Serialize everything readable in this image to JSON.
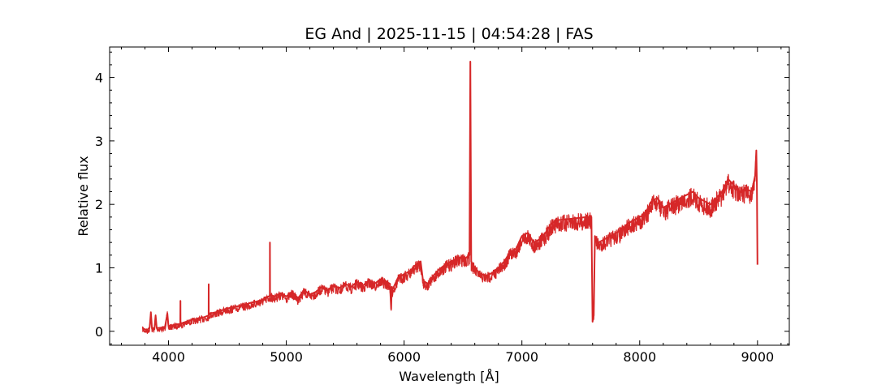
{
  "chart_data": {
    "type": "line",
    "title": "EG And | 2025-11-15 | 04:54:28 | FAS",
    "xlabel": "Wavelength [Å]",
    "ylabel": "Relative flux",
    "xlim": [
      3500,
      9270
    ],
    "ylim": [
      -0.22,
      4.48
    ],
    "x_ticks": [
      4000,
      5000,
      6000,
      7000,
      8000,
      9000
    ],
    "y_ticks": [
      0,
      1,
      2,
      3,
      4
    ],
    "grid": false,
    "line_color": "#d62728",
    "series": [
      {
        "x": [
          3780,
          3800,
          3820,
          3840,
          3850,
          3860,
          3870,
          3880,
          3890,
          3900,
          3950,
          3970,
          3990,
          4000,
          4050,
          4100,
          4101,
          4102,
          4150,
          4200,
          4250,
          4300,
          4340,
          4341,
          4342,
          4350,
          4400,
          4450,
          4500,
          4550,
          4600,
          4650,
          4700,
          4750,
          4800,
          4850,
          4860,
          4861,
          4862,
          4870,
          4900,
          4950,
          5000,
          5050,
          5100,
          5150,
          5200,
          5250,
          5300,
          5350,
          5400,
          5450,
          5500,
          5550,
          5600,
          5650,
          5700,
          5750,
          5800,
          5850,
          5880,
          5890,
          5895,
          5900,
          5950,
          6000,
          6050,
          6100,
          6140,
          6160,
          6200,
          6250,
          6300,
          6350,
          6400,
          6450,
          6500,
          6520,
          6555,
          6562,
          6570,
          6600,
          6650,
          6700,
          6750,
          6800,
          6850,
          6900,
          6950,
          7000,
          7050,
          7100,
          7150,
          7200,
          7250,
          7300,
          7350,
          7400,
          7450,
          7500,
          7550,
          7590,
          7600,
          7610,
          7620,
          7650,
          7700,
          7750,
          7800,
          7850,
          7900,
          7950,
          8000,
          8050,
          8100,
          8150,
          8200,
          8250,
          8300,
          8350,
          8400,
          8450,
          8500,
          8550,
          8600,
          8650,
          8700,
          8750,
          8800,
          8850,
          8900,
          8950,
          8980,
          8990,
          8995,
          9000
        ],
        "y": [
          0.05,
          0.03,
          0.02,
          0.06,
          0.3,
          0.04,
          0.05,
          0.03,
          0.25,
          0.05,
          0.06,
          0.07,
          0.28,
          0.08,
          0.1,
          0.12,
          0.48,
          0.12,
          0.15,
          0.18,
          0.2,
          0.22,
          0.25,
          0.74,
          0.25,
          0.28,
          0.3,
          0.33,
          0.36,
          0.38,
          0.4,
          0.42,
          0.45,
          0.47,
          0.5,
          0.55,
          0.56,
          1.4,
          0.56,
          0.57,
          0.55,
          0.6,
          0.55,
          0.62,
          0.52,
          0.65,
          0.58,
          0.62,
          0.7,
          0.65,
          0.72,
          0.68,
          0.75,
          0.7,
          0.78,
          0.72,
          0.8,
          0.75,
          0.82,
          0.78,
          0.75,
          0.35,
          0.7,
          0.65,
          0.85,
          0.9,
          0.95,
          1.05,
          1.1,
          0.8,
          0.75,
          0.88,
          0.98,
          1.05,
          1.1,
          1.15,
          1.18,
          1.15,
          1.2,
          4.25,
          1.1,
          1.0,
          0.9,
          0.88,
          0.92,
          1.0,
          1.1,
          1.25,
          1.3,
          1.5,
          1.55,
          1.4,
          1.45,
          1.55,
          1.7,
          1.75,
          1.76,
          1.77,
          1.78,
          1.79,
          1.8,
          1.8,
          0.15,
          0.25,
          1.5,
          1.4,
          1.45,
          1.5,
          1.55,
          1.6,
          1.7,
          1.75,
          1.8,
          1.85,
          2.05,
          2.1,
          1.95,
          2.0,
          2.05,
          2.1,
          2.15,
          2.2,
          2.1,
          2.05,
          2.0,
          2.1,
          2.2,
          2.4,
          2.3,
          2.2,
          2.25,
          2.2,
          2.45,
          2.85,
          2.3,
          1.05
        ]
      }
    ]
  }
}
